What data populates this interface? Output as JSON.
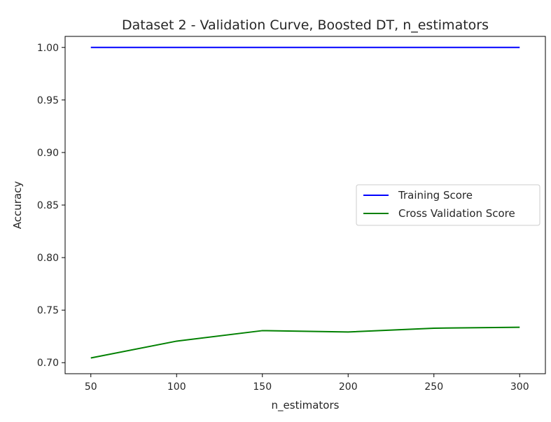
{
  "chart_data": {
    "type": "line",
    "title": "Dataset 2 - Validation Curve, Boosted DT, n_estimators",
    "xlabel": "n_estimators",
    "ylabel": "Accuracy",
    "x": [
      50,
      100,
      150,
      200,
      250,
      300
    ],
    "xlim": [
      35,
      315
    ],
    "ylim": [
      0.6895,
      1.0105
    ],
    "xticks": [
      50,
      100,
      150,
      200,
      250,
      300
    ],
    "yticks": [
      0.7,
      0.75,
      0.8,
      0.85,
      0.9,
      0.95,
      1.0
    ],
    "grid": false,
    "legend_position": "center-right",
    "series": [
      {
        "name": "Training Score",
        "color": "#0000ff",
        "values": [
          1.0,
          1.0,
          1.0,
          1.0,
          1.0,
          1.0
        ]
      },
      {
        "name": "Cross Validation Score",
        "color": "#008000",
        "values": [
          0.7045,
          0.7205,
          0.7305,
          0.7292,
          0.7328,
          0.7337
        ]
      }
    ]
  }
}
